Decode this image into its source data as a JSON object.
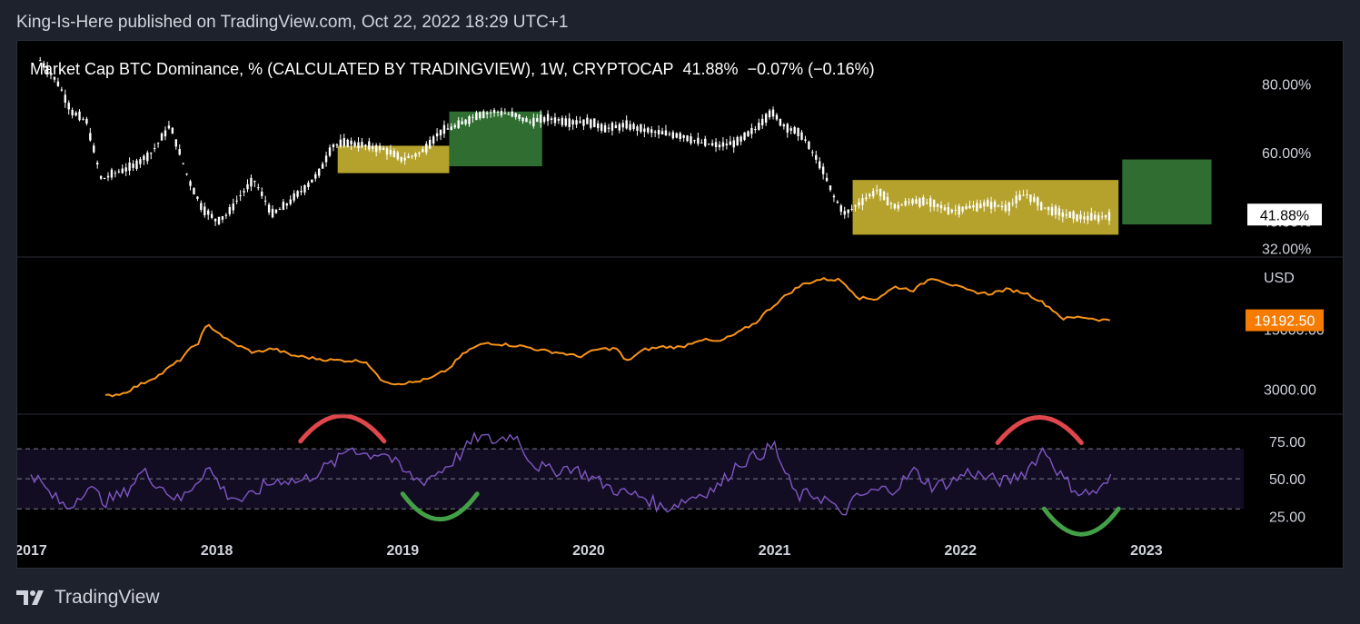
{
  "header": {
    "published_text": "King-Is-Here published on TradingView.com, Oct 22, 2022 18:29 UTC+1"
  },
  "footer": {
    "brand": "TradingView",
    "logo_icon": "tradingview-logo-icon"
  },
  "chart_data": [
    {
      "type": "line",
      "style": "candlestick-like",
      "title": "Market Cap BTC Dominance, % (CALCULATED BY TRADINGVIEW), 1W, CRYPTOCAP",
      "last_value": "41.88%",
      "change": "−0.07% (−0.16%)",
      "price_label": "41.88%",
      "y_ticks": [
        "80.00%",
        "60.00%",
        "40.00%",
        "32.00%"
      ],
      "ylim": [
        30,
        90
      ],
      "x": [
        2017.05,
        2017.15,
        2017.22,
        2017.3,
        2017.38,
        2017.45,
        2017.55,
        2017.65,
        2017.75,
        2017.85,
        2017.92,
        2018.0,
        2018.06,
        2018.12,
        2018.2,
        2018.3,
        2018.38,
        2018.48,
        2018.55,
        2018.62,
        2018.7,
        2018.8,
        2018.9,
        2019.0,
        2019.1,
        2019.2,
        2019.3,
        2019.4,
        2019.5,
        2019.6,
        2019.68,
        2019.78,
        2019.9,
        2020.0,
        2020.1,
        2020.2,
        2020.35,
        2020.5,
        2020.6,
        2020.7,
        2020.8,
        2020.9,
        2020.98,
        2021.05,
        2021.15,
        2021.25,
        2021.32,
        2021.38,
        2021.45,
        2021.55,
        2021.65,
        2021.75,
        2021.85,
        2021.95,
        2022.05,
        2022.15,
        2022.25,
        2022.35,
        2022.45,
        2022.55,
        2022.65,
        2022.75,
        2022.81
      ],
      "values": [
        87,
        80,
        72,
        69,
        52,
        54,
        56,
        60,
        68,
        52,
        44,
        40,
        42,
        47,
        52,
        42,
        45,
        50,
        54,
        62,
        63,
        62,
        61,
        58,
        60,
        66,
        68,
        71,
        72,
        71,
        69,
        70,
        69,
        69,
        67,
        68,
        66,
        65,
        63,
        62,
        63,
        67,
        72,
        68,
        65,
        56,
        47,
        42,
        45,
        49,
        44,
        46,
        45,
        43,
        44,
        45,
        44,
        48,
        44,
        42,
        41,
        41,
        41.88
      ],
      "annotations": [
        {
          "type": "box",
          "color": "#b5a22c",
          "x": [
            2018.65,
            2019.25
          ],
          "y": [
            54,
            62
          ]
        },
        {
          "type": "box",
          "color": "#2f6d31",
          "x": [
            2019.25,
            2019.75
          ],
          "y": [
            56,
            72
          ]
        },
        {
          "type": "box",
          "color": "#b5a22c",
          "x": [
            2021.42,
            2022.85
          ],
          "y": [
            36,
            52
          ]
        },
        {
          "type": "box",
          "color": "#2f6d31",
          "x": [
            2022.87,
            2023.35
          ],
          "y": [
            39,
            58
          ]
        }
      ]
    },
    {
      "type": "line",
      "series_unit": "USD",
      "color": "#f7931a",
      "price_label": "19192.50",
      "y_ticks": [
        "15000.00",
        "3000.00"
      ],
      "ylim": [
        1500,
        100000
      ],
      "x": [
        2017.4,
        2017.5,
        2017.6,
        2017.7,
        2017.8,
        2017.9,
        2017.95,
        2018.05,
        2018.1,
        2018.2,
        2018.3,
        2018.4,
        2018.5,
        2018.6,
        2018.7,
        2018.8,
        2018.87,
        2018.95,
        2019.05,
        2019.15,
        2019.25,
        2019.35,
        2019.45,
        2019.55,
        2019.65,
        2019.75,
        2019.85,
        2019.95,
        2020.05,
        2020.15,
        2020.2,
        2020.3,
        2020.4,
        2020.5,
        2020.6,
        2020.7,
        2020.8,
        2020.9,
        2021.0,
        2021.08,
        2021.15,
        2021.25,
        2021.35,
        2021.45,
        2021.55,
        2021.65,
        2021.75,
        2021.85,
        2021.95,
        2022.05,
        2022.15,
        2022.25,
        2022.35,
        2022.45,
        2022.55,
        2022.65,
        2022.75,
        2022.81
      ],
      "values": [
        2500,
        2700,
        3500,
        4500,
        6500,
        10500,
        17000,
        11500,
        10000,
        8000,
        9000,
        7500,
        7000,
        6600,
        6500,
        6400,
        4000,
        3500,
        3600,
        4000,
        5200,
        8500,
        10500,
        10000,
        9500,
        8500,
        8000,
        7200,
        8800,
        9000,
        6200,
        8700,
        9400,
        9300,
        11500,
        10700,
        13500,
        18000,
        29000,
        40000,
        50000,
        58000,
        57000,
        35000,
        34000,
        47000,
        43000,
        61000,
        50000,
        42000,
        39000,
        44000,
        40000,
        30000,
        20000,
        21000,
        19500,
        19192.5
      ]
    },
    {
      "type": "line",
      "indicator": "RSI",
      "color": "#7e57c2",
      "y_ticks": [
        "75.00",
        "50.00",
        "25.00"
      ],
      "band": [
        30,
        70
      ],
      "ylim": [
        15,
        90
      ],
      "x": [
        2017.0,
        2017.1,
        2017.2,
        2017.3,
        2017.4,
        2017.5,
        2017.6,
        2017.7,
        2017.8,
        2017.9,
        2017.95,
        2018.05,
        2018.15,
        2018.25,
        2018.35,
        2018.45,
        2018.55,
        2018.65,
        2018.72,
        2018.8,
        2018.9,
        2019.0,
        2019.1,
        2019.2,
        2019.3,
        2019.4,
        2019.5,
        2019.6,
        2019.7,
        2019.8,
        2019.9,
        2020.0,
        2020.1,
        2020.2,
        2020.3,
        2020.4,
        2020.5,
        2020.6,
        2020.7,
        2020.8,
        2020.9,
        2021.0,
        2021.05,
        2021.12,
        2021.2,
        2021.3,
        2021.35,
        2021.45,
        2021.55,
        2021.65,
        2021.75,
        2021.85,
        2021.95,
        2022.05,
        2022.15,
        2022.25,
        2022.35,
        2022.45,
        2022.55,
        2022.65,
        2022.75,
        2022.81
      ],
      "values": [
        55,
        40,
        30,
        45,
        35,
        40,
        55,
        45,
        35,
        50,
        58,
        40,
        35,
        45,
        50,
        48,
        55,
        62,
        72,
        66,
        68,
        55,
        48,
        55,
        65,
        78,
        75,
        80,
        60,
        55,
        58,
        52,
        45,
        40,
        38,
        30,
        35,
        40,
        45,
        60,
        65,
        72,
        55,
        38,
        40,
        35,
        25,
        38,
        42,
        44,
        55,
        45,
        48,
        55,
        50,
        48,
        55,
        70,
        50,
        40,
        42,
        50
      ],
      "annotations": [
        {
          "type": "arc",
          "direction": "top",
          "color": "#e0474c",
          "x": [
            2018.45,
            2018.9
          ],
          "y": 75
        },
        {
          "type": "arc",
          "direction": "bottom",
          "color": "#43a047",
          "x": [
            2019.0,
            2019.4
          ],
          "y": 40
        },
        {
          "type": "arc",
          "direction": "top",
          "color": "#e0474c",
          "x": [
            2022.2,
            2022.65
          ],
          "y": 74
        },
        {
          "type": "arc",
          "direction": "bottom",
          "color": "#43a047",
          "x": [
            2022.45,
            2022.85
          ],
          "y": 30
        }
      ]
    }
  ],
  "x_axis": {
    "ticks": [
      "2017",
      "2018",
      "2019",
      "2020",
      "2021",
      "2022",
      "2023"
    ]
  }
}
